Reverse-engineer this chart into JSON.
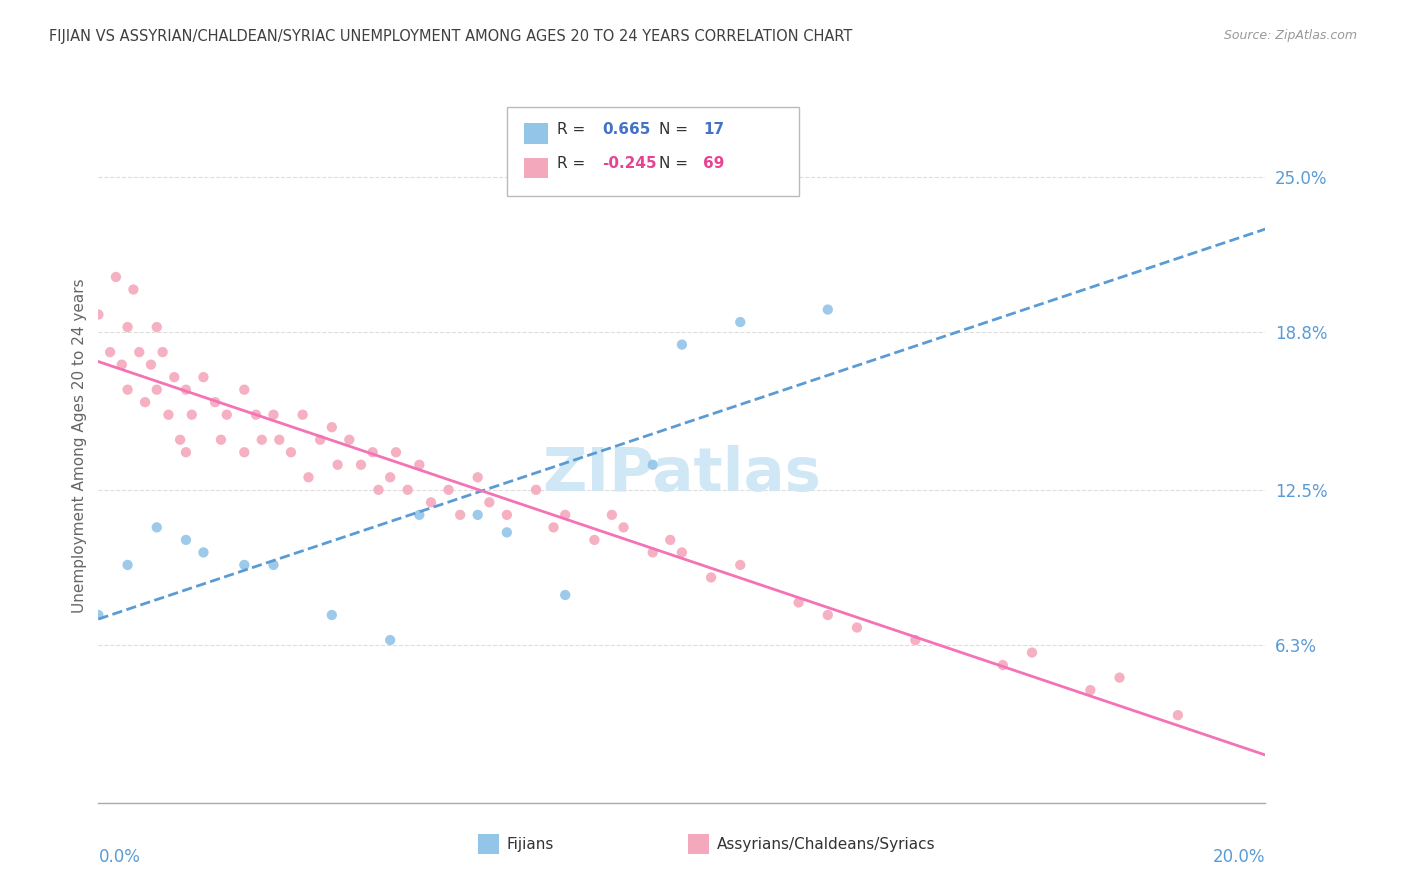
{
  "title": "FIJIAN VS ASSYRIAN/CHALDEAN/SYRIAC UNEMPLOYMENT AMONG AGES 20 TO 24 YEARS CORRELATION CHART",
  "source": "Source: ZipAtlas.com",
  "ylabel": "Unemployment Among Ages 20 to 24 years",
  "yticks": [
    0.0,
    0.063,
    0.125,
    0.188,
    0.25
  ],
  "ytick_labels": [
    "",
    "6.3%",
    "12.5%",
    "18.8%",
    "25.0%"
  ],
  "xmin": 0.0,
  "xmax": 0.2,
  "ymin": 0.0,
  "ymax": 0.285,
  "fijian_R": 0.665,
  "fijian_N": 17,
  "assyrian_R": -0.245,
  "assyrian_N": 69,
  "fijian_scatter_color": "#92C5E8",
  "assyrian_scatter_color": "#F4A8BC",
  "fijian_line_color": "#5B9BD5",
  "assyrian_line_color": "#F472B6",
  "legend_R_color_fijian": "#4472C4",
  "legend_R_color_assyrian": "#E84393",
  "title_color": "#404040",
  "source_color": "#999999",
  "axis_label_color": "#5B9BD5",
  "ylabel_color": "#666666",
  "grid_color": "#DDDDDD",
  "watermark_color": "#D0E8F5",
  "fijian_scatter_x": [
    0.0,
    0.005,
    0.01,
    0.015,
    0.018,
    0.025,
    0.03,
    0.04,
    0.05,
    0.055,
    0.065,
    0.07,
    0.08,
    0.095,
    0.1,
    0.11,
    0.125
  ],
  "fijian_scatter_y": [
    0.075,
    0.095,
    0.11,
    0.105,
    0.1,
    0.095,
    0.095,
    0.075,
    0.065,
    0.115,
    0.115,
    0.108,
    0.083,
    0.135,
    0.183,
    0.192,
    0.197
  ],
  "assyrian_scatter_x": [
    0.0,
    0.002,
    0.003,
    0.004,
    0.005,
    0.005,
    0.006,
    0.007,
    0.008,
    0.009,
    0.01,
    0.01,
    0.011,
    0.012,
    0.013,
    0.014,
    0.015,
    0.015,
    0.016,
    0.018,
    0.02,
    0.021,
    0.022,
    0.025,
    0.025,
    0.027,
    0.028,
    0.03,
    0.031,
    0.033,
    0.035,
    0.036,
    0.038,
    0.04,
    0.041,
    0.043,
    0.045,
    0.047,
    0.048,
    0.05,
    0.051,
    0.053,
    0.055,
    0.057,
    0.06,
    0.062,
    0.065,
    0.067,
    0.07,
    0.075,
    0.078,
    0.08,
    0.085,
    0.088,
    0.09,
    0.095,
    0.098,
    0.1,
    0.105,
    0.11,
    0.12,
    0.125,
    0.13,
    0.14,
    0.155,
    0.16,
    0.17,
    0.175,
    0.185
  ],
  "assyrian_scatter_y": [
    0.195,
    0.18,
    0.21,
    0.175,
    0.19,
    0.165,
    0.205,
    0.18,
    0.16,
    0.175,
    0.19,
    0.165,
    0.18,
    0.155,
    0.17,
    0.145,
    0.165,
    0.14,
    0.155,
    0.17,
    0.16,
    0.145,
    0.155,
    0.165,
    0.14,
    0.155,
    0.145,
    0.155,
    0.145,
    0.14,
    0.155,
    0.13,
    0.145,
    0.15,
    0.135,
    0.145,
    0.135,
    0.14,
    0.125,
    0.13,
    0.14,
    0.125,
    0.135,
    0.12,
    0.125,
    0.115,
    0.13,
    0.12,
    0.115,
    0.125,
    0.11,
    0.115,
    0.105,
    0.115,
    0.11,
    0.1,
    0.105,
    0.1,
    0.09,
    0.095,
    0.08,
    0.075,
    0.07,
    0.065,
    0.055,
    0.06,
    0.045,
    0.05,
    0.035
  ]
}
